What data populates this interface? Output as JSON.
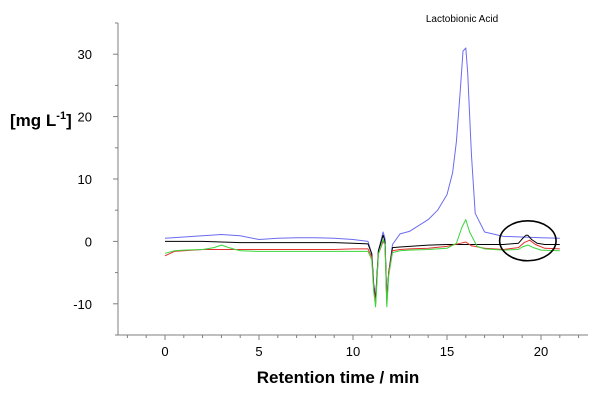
{
  "chart_data": {
    "type": "line",
    "title": "",
    "xlabel": "Retention time / min",
    "ylabel_main": "[mg L",
    "ylabel_sup": "-1",
    "ylabel_close": "]",
    "annotation": "Lactobionic Acid",
    "xlim": [
      -2.5,
      22.5
    ],
    "ylim": [
      -15,
      35
    ],
    "xticks": [
      0,
      5,
      10,
      15,
      20
    ],
    "yticks": [
      -10,
      0,
      10,
      20,
      30
    ],
    "grid": false,
    "highlight_circle": {
      "x": 19.3,
      "y": 0.1,
      "rx": 1.5,
      "ry": 3.2
    },
    "series": [
      {
        "color": "#6b6bf0",
        "x": [
          0,
          1,
          2,
          3,
          4,
          5,
          6,
          7,
          8,
          9,
          10,
          10.8,
          11.0,
          11.1,
          11.2,
          11.35,
          11.6,
          11.7,
          11.8,
          11.9,
          12.1,
          12.5,
          13,
          14,
          14.5,
          15,
          15.3,
          15.5,
          15.7,
          15.85,
          16.0,
          16.1,
          16.3,
          16.5,
          17,
          18,
          19,
          20,
          21
        ],
        "y": [
          0.5,
          0.7,
          0.9,
          1.1,
          0.9,
          0.3,
          0.5,
          0.6,
          0.6,
          0.5,
          0.3,
          0.0,
          -2.0,
          -7.0,
          -9.0,
          -1.5,
          1.5,
          0.5,
          -9.0,
          -5.0,
          -0.5,
          1.2,
          1.6,
          3.5,
          5.0,
          7.5,
          11.0,
          16.0,
          24.0,
          30.5,
          31.0,
          27.0,
          14.0,
          4.5,
          1.5,
          0.8,
          0.7,
          0.6,
          0.5
        ]
      },
      {
        "color": "#000000",
        "x": [
          0,
          1,
          2,
          3,
          4,
          5,
          6,
          7,
          8,
          9,
          10,
          10.8,
          11.0,
          11.1,
          11.2,
          11.35,
          11.6,
          11.7,
          11.8,
          11.9,
          12.1,
          12.5,
          13,
          14,
          15,
          15.5,
          16,
          17,
          18,
          18.8,
          19.0,
          19.2,
          19.3,
          19.5,
          19.8,
          20.2,
          21
        ],
        "y": [
          0.0,
          0.0,
          0.0,
          -0.1,
          -0.2,
          -0.2,
          -0.2,
          -0.2,
          -0.2,
          -0.2,
          -0.3,
          -0.4,
          -2.0,
          -7.0,
          -9.5,
          -1.5,
          1.0,
          0.0,
          -9.5,
          -5.0,
          -1.0,
          -0.9,
          -0.8,
          -0.6,
          -0.5,
          -0.5,
          -0.5,
          -0.5,
          -0.5,
          -0.3,
          0.4,
          1.0,
          1.0,
          0.3,
          -0.3,
          -0.5,
          -0.5
        ]
      },
      {
        "color": "#e03030",
        "x": [
          0,
          0.5,
          1,
          2,
          3,
          4,
          5,
          6,
          7,
          8,
          9,
          10,
          10.8,
          11.0,
          11.1,
          11.2,
          11.35,
          11.6,
          11.7,
          11.8,
          11.9,
          12.1,
          12.5,
          13,
          14,
          15,
          15.7,
          16.0,
          16.3,
          17,
          18,
          18.8,
          19.1,
          19.4,
          19.7,
          20.2,
          21
        ],
        "y": [
          -2.3,
          -1.6,
          -1.5,
          -1.3,
          -1.3,
          -1.3,
          -1.3,
          -1.3,
          -1.3,
          -1.3,
          -1.3,
          -1.2,
          -1.2,
          -2.5,
          -7.5,
          -10.0,
          -2.0,
          0.0,
          -0.5,
          -10.0,
          -5.0,
          -1.5,
          -1.3,
          -1.2,
          -1.1,
          -0.8,
          -0.3,
          -0.1,
          -0.7,
          -1.1,
          -1.3,
          -1.0,
          -0.2,
          0.2,
          -0.5,
          -1.1,
          -1.2
        ]
      },
      {
        "color": "#3ad63a",
        "x": [
          0,
          0.5,
          1,
          2,
          2.6,
          3.0,
          3.4,
          4,
          5,
          6,
          7,
          8,
          9,
          10,
          10.8,
          11.0,
          11.1,
          11.2,
          11.35,
          11.6,
          11.7,
          11.8,
          11.9,
          12.1,
          12.5,
          13,
          14,
          15,
          15.5,
          15.8,
          16.0,
          16.2,
          16.6,
          17,
          18,
          18.8,
          19.0,
          19.3,
          19.6,
          20,
          21
        ],
        "y": [
          -1.9,
          -1.5,
          -1.4,
          -1.3,
          -1.0,
          -0.6,
          -1.0,
          -1.5,
          -1.6,
          -1.6,
          -1.6,
          -1.6,
          -1.6,
          -1.6,
          -1.6,
          -3.0,
          -8.0,
          -10.5,
          -2.0,
          0.3,
          -0.5,
          -10.5,
          -5.5,
          -1.8,
          -1.5,
          -1.4,
          -1.3,
          -1.1,
          -0.3,
          2.3,
          3.5,
          1.5,
          -0.8,
          -1.2,
          -1.4,
          -1.3,
          -0.9,
          -0.6,
          -1.0,
          -1.4,
          -1.5
        ]
      }
    ]
  }
}
